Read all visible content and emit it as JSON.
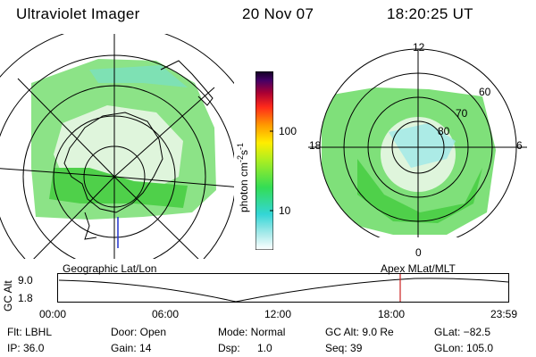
{
  "header": {
    "title": "Ultraviolet Imager",
    "date": "20 Nov 07",
    "time": "18:20:25 UT"
  },
  "colorbar": {
    "label": "photon cm",
    "label_exp1": "-2",
    "label_s": "s",
    "label_exp2": "-1",
    "ticks": [
      "100",
      "10"
    ]
  },
  "right_map": {
    "mlt_labels": {
      "top": "12",
      "left": "18",
      "right": "6",
      "bottom": "0"
    },
    "lat_labels": [
      "60",
      "70",
      "80"
    ]
  },
  "timeline": {
    "left_title": "Geographic Lat/Lon",
    "right_title": "Apex MLat/MLT",
    "yaxis_label": "GC Alt",
    "y_max_label": "9.0",
    "y_min_label": "1.8",
    "x_ticks": [
      "00:00",
      "06:00",
      "12:00",
      "18:00",
      "23:59"
    ],
    "colors": {
      "marker": "#cc2222"
    }
  },
  "info": {
    "filter": "Flt: LBHL",
    "ip": "IP: 36.0",
    "door": "Door: Open",
    "gain": "Gain: 14",
    "mode": "Mode: Normal",
    "dsp_label": "Dsp:",
    "dsp_value": "1.0",
    "gc_alt": "GC Alt: 9.0 Re",
    "seq": "Seq: 39",
    "glat": "GLat: −82.5",
    "glon": "GLon: 105.0"
  }
}
